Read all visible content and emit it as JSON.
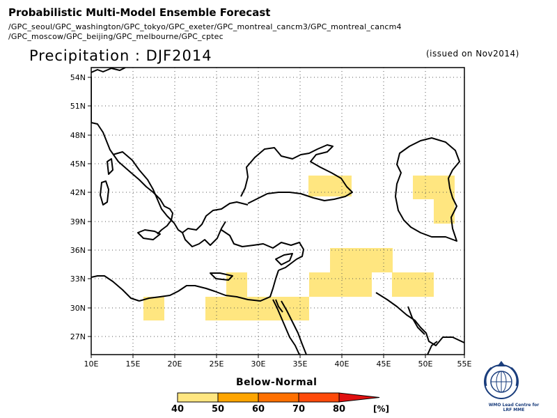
{
  "header": {
    "title": "Probabilistic Multi-Model Ensemble Forecast",
    "models_line1": "/GPC_seoul/GPC_washington/GPC_tokyo/GPC_exeter/GPC_montreal_cancm3/GPC_montreal_cancm4",
    "models_line2": "/GPC_moscow/GPC_beijing/GPC_melbourne/GPC_cptec"
  },
  "map": {
    "title": "Precipitation : DJF2014",
    "issued": "(issued on Nov2014)",
    "lon_labels": [
      "10E",
      "15E",
      "20E",
      "25E",
      "30E",
      "35E",
      "40E",
      "45E",
      "50E",
      "55E"
    ],
    "lat_labels": [
      "54N",
      "51N",
      "48N",
      "45N",
      "42N",
      "39N",
      "36N",
      "33N",
      "30N",
      "27N"
    ],
    "lon_range": [
      10,
      55
    ],
    "lat_range": [
      25,
      55
    ],
    "grid": "dotted",
    "category": "Below-Normal",
    "forecast_cells_color": "#ffe680",
    "forecast_cells_probability_bin": "40-50"
  },
  "colorbar": {
    "label": "Below-Normal",
    "ticks": [
      "40",
      "50",
      "60",
      "70",
      "80"
    ],
    "unit": "[%]",
    "colors": [
      "#ffe680",
      "#ffa500",
      "#ff7000",
      "#ff4a0a",
      "#ff2000",
      "#e01010"
    ]
  },
  "logo": {
    "name": "wmo-logo-icon",
    "caption_line1": "WMO Lead Centre for",
    "caption_line2": "LRF MME"
  }
}
